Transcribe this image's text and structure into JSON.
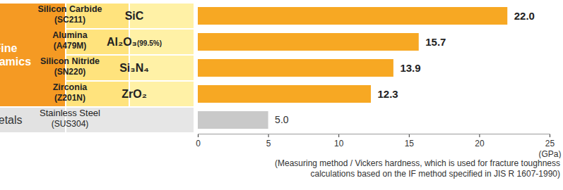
{
  "chart_data": {
    "type": "bar",
    "orientation": "horizontal",
    "groups": [
      "Fine Ceramics",
      "Fine Ceramics",
      "Fine Ceramics",
      "Fine Ceramics",
      "Metals"
    ],
    "categories": [
      "Silicon Carbide",
      "Alumina",
      "Silicon Nitride",
      "Zirconia",
      "Stainless Steel"
    ],
    "codes": [
      "(SC211)",
      "(A479M)",
      "(SN220)",
      "(Z201N)",
      "(SUS304)"
    ],
    "formulas": [
      "SiC",
      "Al₂O₃(99.5%)",
      "Si₃N₄",
      "ZrO₂",
      null
    ],
    "values": [
      22.0,
      15.7,
      13.9,
      12.3,
      5.0
    ],
    "value_labels": [
      "22.0",
      "15.7",
      "13.9",
      "12.3",
      "5.0"
    ],
    "data_labels": true,
    "colors": [
      "#f7a823",
      "#f7a823",
      "#f7a823",
      "#f7a823",
      "#c9c9c9"
    ],
    "xlim": [
      0,
      25
    ],
    "xticks": [
      0,
      5,
      10,
      15,
      20,
      25
    ],
    "x_label": "(GPa)",
    "note": [
      "(Measuring method / Vickers hardness, which is used for fracture toughness",
      "calculations based on the IF method specified in JIS R 1607-1990)"
    ]
  }
}
